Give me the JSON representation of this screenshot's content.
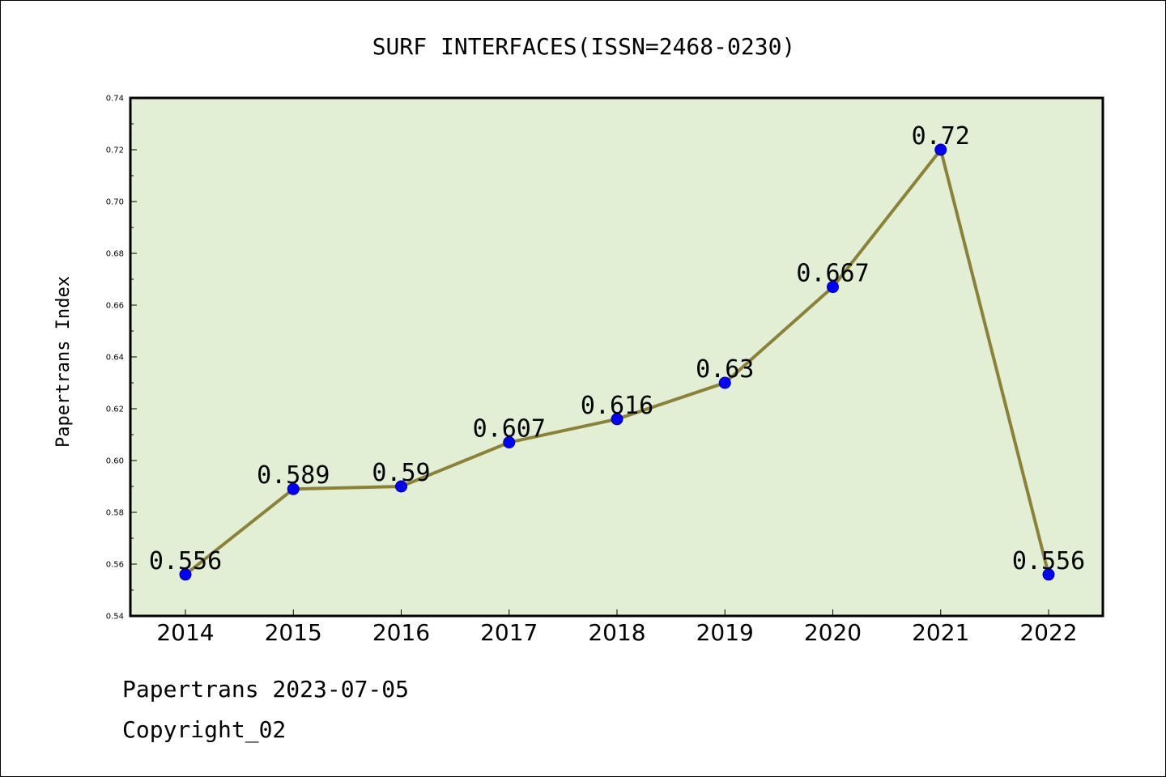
{
  "chart_data": {
    "type": "line",
    "title": "SURF INTERFACES(ISSN=2468-0230)",
    "xlabel": "",
    "ylabel": "Papertrans Index",
    "categories": [
      "2014",
      "2015",
      "2016",
      "2017",
      "2018",
      "2019",
      "2020",
      "2021",
      "2022"
    ],
    "series": [
      {
        "values": [
          0.556,
          0.589,
          0.59,
          0.607,
          0.616,
          0.63,
          0.667,
          0.72,
          0.556
        ],
        "data_labels": [
          "0.556",
          "0.589",
          "0.59",
          "0.607",
          "0.616",
          "0.63",
          "0.667",
          "0.72",
          "0.556"
        ]
      }
    ],
    "ylim": [
      0.54,
      0.74
    ],
    "y_ticks": [
      "0.54",
      "0.56",
      "0.58",
      "0.60",
      "0.62",
      "0.64",
      "0.66",
      "0.68",
      "0.70",
      "0.72",
      "0.74"
    ],
    "grid": false,
    "legend": "none"
  },
  "colors": {
    "plot_background": "#e2efd5",
    "line": "#8b8237",
    "marker": "#0000ff",
    "marker_edge": "#00008b",
    "axis": "#000000"
  },
  "footer": {
    "date_line": "Papertrans 2023-07-05",
    "copyright_line": "Copyright_02"
  }
}
